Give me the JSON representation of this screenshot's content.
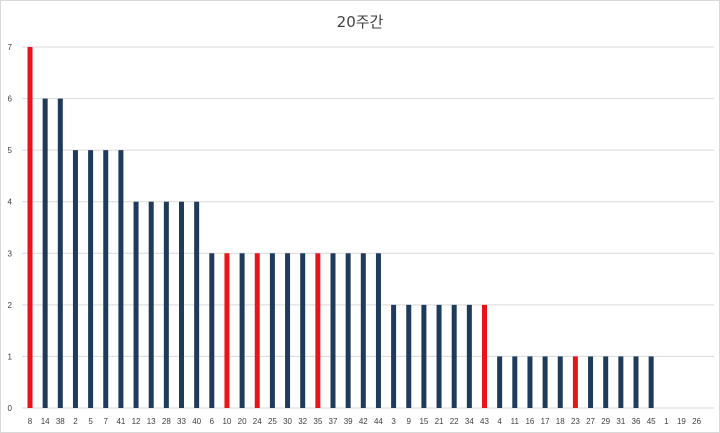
{
  "chart_data": {
    "type": "bar",
    "title": "20주간",
    "xlabel": "",
    "ylabel": "",
    "ylim": [
      0,
      7
    ],
    "yticks": [
      0,
      1,
      2,
      3,
      4,
      5,
      6,
      7
    ],
    "grid": true,
    "legend": "none",
    "categories": [
      "8",
      "14",
      "38",
      "2",
      "5",
      "7",
      "41",
      "12",
      "13",
      "28",
      "33",
      "40",
      "6",
      "10",
      "20",
      "24",
      "25",
      "30",
      "32",
      "35",
      "37",
      "39",
      "42",
      "44",
      "3",
      "9",
      "15",
      "21",
      "22",
      "34",
      "43",
      "4",
      "11",
      "16",
      "17",
      "18",
      "23",
      "27",
      "29",
      "31",
      "36",
      "45",
      "1",
      "19",
      "26"
    ],
    "values": [
      7,
      6,
      6,
      5,
      5,
      5,
      5,
      4,
      4,
      4,
      4,
      4,
      3,
      3,
      3,
      3,
      3,
      3,
      3,
      3,
      3,
      3,
      3,
      3,
      2,
      2,
      2,
      2,
      2,
      2,
      2,
      1,
      1,
      1,
      1,
      1,
      1,
      1,
      1,
      1,
      1,
      1,
      0,
      0,
      0
    ],
    "highlighted": [
      "8",
      "10",
      "24",
      "35",
      "43",
      "23"
    ],
    "colors": {
      "default_bar": "#1f3b5c",
      "highlight_bar": "#e8141a",
      "gridline": "#d9d9d9",
      "text": "#404040"
    }
  }
}
